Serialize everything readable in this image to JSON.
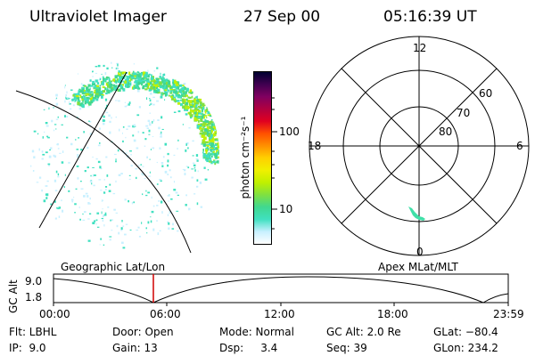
{
  "header": {
    "instrument": "Ultraviolet Imager",
    "date": "27 Sep 00",
    "time": "05:16:39 UT"
  },
  "colorbar": {
    "unit_label": "photon cm⁻²s⁻¹",
    "ticks": [
      "100",
      "10"
    ],
    "colors": [
      "#ffffff",
      "#c8f0ff",
      "#40e0c0",
      "#40d890",
      "#80e040",
      "#c0f000",
      "#f0f000",
      "#ffd000",
      "#ff9000",
      "#ff5000",
      "#e00020",
      "#b00040",
      "#800060",
      "#400050",
      "#000030"
    ]
  },
  "polar": {
    "mlt_labels": {
      "top": "12",
      "right": "6",
      "bottom": "0",
      "left": "18"
    },
    "lat_labels": [
      "60",
      "70",
      "80"
    ]
  },
  "geo_label": "Geographic Lat/Lon",
  "apex_label": "Apex MLat/MLT",
  "timeline": {
    "y_title": "GC Alt",
    "y_ticks": [
      "9.0",
      "1.8"
    ],
    "x_ticks": [
      "00:00",
      "06:00",
      "12:00",
      "18:00",
      "23:59"
    ],
    "marker_color": "#d00000"
  },
  "footer": {
    "flt": "Flt: LBHL",
    "ip": "IP:  9.0",
    "door": "Door: Open",
    "gain": "Gain: 13",
    "mode": "Mode: Normal",
    "dsp": "Dsp:     3.4",
    "gcalt": "GC Alt: 2.0 Re",
    "seq": "Seq: 39",
    "glat": "GLat: −80.4",
    "glon": "GLon: 234.2"
  }
}
